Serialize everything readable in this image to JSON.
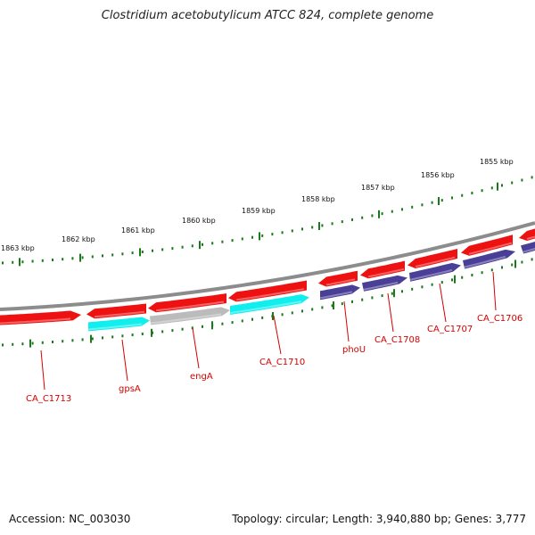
{
  "title": "Clostridium acetobutylicum ATCC 824, complete genome",
  "footer": {
    "accession": "Accession: NC_003030",
    "summary": "Topology: circular; Length: 3,940,880 bp; Genes: 3,777"
  },
  "colors": {
    "backbone": "#8c8c8c",
    "forward_gene": "#ee1111",
    "reverse_cyan": "#11eeee",
    "reverse_grey": "#bbbbbb",
    "reverse_navy": "#4a3f96",
    "tick_green": "#1a7a1a",
    "label_red": "#d40000"
  },
  "ruler_labels": [
    "1863 kbp",
    "1862 kbp",
    "1861 kbp",
    "1860 kbp",
    "1859 kbp",
    "1858 kbp",
    "1857 kbp",
    "1856 kbp",
    "1855 kbp"
  ],
  "gene_labels": [
    "CA_C1713",
    "gpsA",
    "engA",
    "CA_C1710",
    "phoU",
    "CA_C1708",
    "CA_C1707",
    "CA_C1706"
  ]
}
